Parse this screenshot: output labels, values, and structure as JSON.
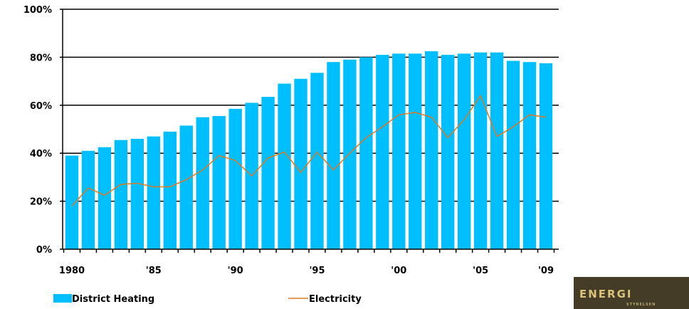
{
  "chart_data": {
    "type": "bar",
    "x": [
      1980,
      1981,
      1982,
      1983,
      1984,
      1985,
      1986,
      1987,
      1988,
      1989,
      1990,
      1991,
      1992,
      1993,
      1994,
      1995,
      1996,
      1997,
      1998,
      1999,
      2000,
      2001,
      2002,
      2003,
      2004,
      2005,
      2006,
      2007,
      2008,
      2009
    ],
    "series": [
      {
        "name": "District Heating",
        "kind": "bar",
        "color": "#00BFFF",
        "values": [
          39,
          41,
          42.5,
          45.5,
          46,
          47,
          49,
          51.5,
          55,
          55.5,
          58.5,
          61,
          63.5,
          69,
          71,
          73.5,
          78,
          79,
          80,
          81,
          81.5,
          81.5,
          82.5,
          81,
          81.5,
          82,
          82,
          78.5,
          78,
          77.5
        ]
      },
      {
        "name": "Electricity",
        "kind": "line",
        "color": "#E07820",
        "values": [
          18,
          25.5,
          22.5,
          27,
          27.5,
          26,
          26,
          29,
          33,
          39,
          37,
          30.5,
          38,
          40.5,
          32,
          40.5,
          33,
          40,
          46.5,
          51,
          56,
          57,
          55,
          46.5,
          54,
          64,
          47,
          51,
          56,
          55
        ]
      }
    ],
    "x_tick_labels": [
      "1980",
      "'85",
      "'90",
      "'95",
      "'00",
      "'05",
      "'09"
    ],
    "y_tick_labels": [
      "0%",
      "20%",
      "40%",
      "60%",
      "80%",
      "100%"
    ],
    "ylim": [
      0,
      100
    ],
    "grid": true,
    "legend_position": "bottom"
  },
  "legend": {
    "district_heating": "District Heating",
    "electricity": "Electricity"
  },
  "logo": {
    "text": "ENERGI",
    "subtext": "STYRELSEN"
  }
}
